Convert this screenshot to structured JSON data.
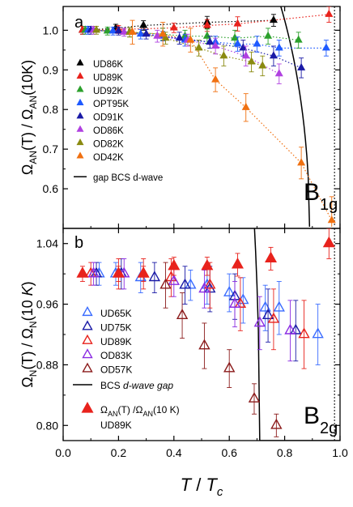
{
  "chart_data": [
    {
      "panel": "a",
      "type": "scatter",
      "ylabel_parts": [
        "Ω",
        "AN",
        "(T) / Ω",
        "AN",
        "(10K)"
      ],
      "symmetry": [
        "B",
        "1g"
      ],
      "xlim": [
        0.0,
        1.0
      ],
      "ylim": [
        0.5,
        1.06
      ],
      "yticks": [
        0.6,
        0.7,
        0.8,
        0.9,
        1.0
      ],
      "ytick_labels": [
        "0.6",
        "0.7",
        "0.8",
        "0.9",
        "1.0"
      ],
      "vline_x": 0.98,
      "series": [
        {
          "name": "UD86K",
          "color": "#000000",
          "marker": "triangle",
          "x": [
            0.07,
            0.19,
            0.29,
            0.52,
            0.76
          ],
          "y": [
            1.0,
            1.005,
            1.012,
            1.02,
            1.025
          ],
          "err": [
            0.01,
            0.01,
            0.012,
            0.015,
            0.015
          ],
          "fit": "dotted"
        },
        {
          "name": "UD89K",
          "color": "#e8221c",
          "marker": "triangle",
          "x": [
            0.07,
            0.2,
            0.4,
            0.52,
            0.63,
            0.96
          ],
          "y": [
            1.0,
            1.002,
            1.006,
            1.012,
            1.016,
            1.04
          ],
          "err": [
            0.01,
            0.01,
            0.012,
            0.015,
            0.018,
            0.02
          ],
          "fit": "dotted"
        },
        {
          "name": "UD92K",
          "color": "#2ca02c",
          "marker": "triangle",
          "x": [
            0.08,
            0.16,
            0.24,
            0.36,
            0.44,
            0.52,
            0.62,
            0.74,
            0.85
          ],
          "y": [
            1.0,
            0.998,
            0.995,
            0.99,
            0.985,
            0.985,
            0.98,
            0.985,
            0.975
          ],
          "err": [
            0.01,
            0.01,
            0.012,
            0.015,
            0.015,
            0.018,
            0.02,
            0.02,
            0.02
          ],
          "fit": "dotted"
        },
        {
          "name": "OPT95K",
          "color": "#1f5aff",
          "marker": "triangle",
          "x": [
            0.09,
            0.18,
            0.28,
            0.36,
            0.44,
            0.55,
            0.63,
            0.7,
            0.78,
            0.95
          ],
          "y": [
            1.0,
            0.998,
            0.99,
            0.985,
            0.975,
            0.97,
            0.965,
            0.965,
            0.955,
            0.955
          ],
          "err": [
            0.01,
            0.01,
            0.012,
            0.012,
            0.015,
            0.015,
            0.018,
            0.02,
            0.02,
            0.02
          ],
          "fit": "dotted"
        },
        {
          "name": "OD91K",
          "color": "#1a1aa6",
          "marker": "triangle",
          "x": [
            0.1,
            0.2,
            0.3,
            0.42,
            0.53,
            0.65,
            0.76,
            0.86
          ],
          "y": [
            1.0,
            0.998,
            0.99,
            0.98,
            0.97,
            0.955,
            0.935,
            0.905
          ],
          "err": [
            0.01,
            0.01,
            0.012,
            0.015,
            0.015,
            0.02,
            0.025,
            0.025
          ],
          "fit": "dotted"
        },
        {
          "name": "OD86K",
          "color": "#b040e0",
          "marker": "triangle",
          "x": [
            0.11,
            0.22,
            0.34,
            0.45,
            0.55,
            0.66,
            0.78
          ],
          "y": [
            1.0,
            0.995,
            0.985,
            0.975,
            0.96,
            0.935,
            0.89
          ],
          "err": [
            0.01,
            0.01,
            0.015,
            0.015,
            0.02,
            0.025,
            0.025
          ],
          "fit": "dotted"
        },
        {
          "name": "OD82K",
          "color": "#8a8a10",
          "marker": "triangle",
          "x": [
            0.12,
            0.24,
            0.37,
            0.49,
            0.58,
            0.68,
            0.72
          ],
          "y": [
            1.0,
            0.995,
            0.98,
            0.955,
            0.935,
            0.92,
            0.91
          ],
          "err": [
            0.01,
            0.012,
            0.015,
            0.02,
            0.025,
            0.025,
            0.025
          ],
          "fit": "dotted"
        },
        {
          "name": "OD42K",
          "color": "#f07010",
          "marker": "triangle",
          "x": [
            0.25,
            0.36,
            0.46,
            0.55,
            0.66,
            0.86,
            0.97
          ],
          "y": [
            0.995,
            0.99,
            0.975,
            0.875,
            0.805,
            0.665,
            0.52
          ],
          "err": [
            0.03,
            0.03,
            0.03,
            0.03,
            0.035,
            0.04,
            0.06
          ],
          "fit": "dotted"
        }
      ],
      "curve": {
        "name": "gap BCS d-wave",
        "color": "#000000",
        "kind": "bcs",
        "tc_scale": 0.89
      }
    },
    {
      "panel": "b",
      "type": "scatter",
      "ylabel_parts": [
        "Ω",
        "N",
        "(T) / Ω",
        "N",
        "(10 ",
        "K",
        ")"
      ],
      "symmetry": [
        "B",
        "2g"
      ],
      "xlim": [
        0.0,
        1.0
      ],
      "ylim": [
        0.78,
        1.06
      ],
      "yticks": [
        0.8,
        0.88,
        0.96,
        1.04
      ],
      "ytick_labels": [
        "0.80",
        "0.88",
        "0.96",
        "1.04"
      ],
      "xticks": [
        0.0,
        0.2,
        0.4,
        0.6,
        0.8,
        1.0
      ],
      "xtick_labels": [
        "0.0",
        "0.2",
        "0.4",
        "0.6",
        "0.8",
        "1.0"
      ],
      "xlabel_parts": [
        "T",
        " / ",
        "T",
        "c"
      ],
      "vline_x": 0.98,
      "series": [
        {
          "name": "UD65K",
          "color": "#3a6cff",
          "marker": "open-triangle",
          "x": [
            0.13,
            0.19,
            0.28,
            0.46,
            0.52,
            0.6,
            0.65,
            0.73,
            0.78,
            0.92
          ],
          "y": [
            1.0,
            1.0,
            0.995,
            0.985,
            0.985,
            0.975,
            0.965,
            0.955,
            0.955,
            0.92
          ],
          "err": [
            0.015,
            0.015,
            0.02,
            0.02,
            0.025,
            0.025,
            0.03,
            0.03,
            0.035,
            0.04
          ]
        },
        {
          "name": "UD75K",
          "color": "#1a1aa6",
          "marker": "open-triangle",
          "x": [
            0.12,
            0.21,
            0.33,
            0.44,
            0.53,
            0.62,
            0.74,
            0.84
          ],
          "y": [
            1.0,
            1.0,
            0.995,
            0.985,
            0.98,
            0.97,
            0.945,
            0.925
          ],
          "err": [
            0.015,
            0.02,
            0.02,
            0.025,
            0.03,
            0.03,
            0.035,
            0.04
          ]
        },
        {
          "name": "UD89K",
          "color": "#e8221c",
          "marker": "open-triangle",
          "x": [
            0.1,
            0.2,
            0.29,
            0.39,
            0.53,
            0.64,
            0.76,
            0.87
          ],
          "y": [
            1.0,
            1.0,
            1.0,
            0.995,
            0.985,
            0.96,
            0.94,
            0.92
          ],
          "err": [
            0.015,
            0.02,
            0.02,
            0.025,
            0.03,
            0.035,
            0.04,
            0.045
          ]
        },
        {
          "name": "OD83K",
          "color": "#8a2be2",
          "marker": "open-triangle",
          "x": [
            0.11,
            0.22,
            0.4,
            0.51,
            0.62,
            0.71,
            0.82
          ],
          "y": [
            1.0,
            1.0,
            0.99,
            0.98,
            0.96,
            0.935,
            0.925
          ],
          "err": [
            0.015,
            0.02,
            0.02,
            0.025,
            0.03,
            0.035,
            0.04
          ]
        },
        {
          "name": "OD57K",
          "color": "#8b1a1a",
          "marker": "open-triangle",
          "x": [
            0.37,
            0.43,
            0.51,
            0.6,
            0.69,
            0.77
          ],
          "y": [
            0.985,
            0.945,
            0.905,
            0.875,
            0.835,
            0.8
          ],
          "err": [
            0.03,
            0.03,
            0.03,
            0.025,
            0.02,
            0.015
          ]
        },
        {
          "name_parts": [
            "Ω",
            "AN",
            "(T) /Ω",
            "AN",
            "(10 K)"
          ],
          "name_line2": "UD89K",
          "color": "#e8221c",
          "marker": "big-triangle",
          "x": [
            0.07,
            0.2,
            0.29,
            0.4,
            0.52,
            0.63,
            0.75,
            0.96
          ],
          "y": [
            1.0,
            1.0,
            1.0,
            1.01,
            1.01,
            1.012,
            1.02,
            1.04
          ],
          "err": [
            0.01,
            0.01,
            0.01,
            0.012,
            0.012,
            0.015,
            0.015,
            0.02
          ]
        }
      ],
      "curve": {
        "name_parts": [
          "BCS ",
          "d-wave gap"
        ],
        "color": "#000000",
        "kind": "bcs",
        "tc_scale": 0.71
      }
    }
  ]
}
